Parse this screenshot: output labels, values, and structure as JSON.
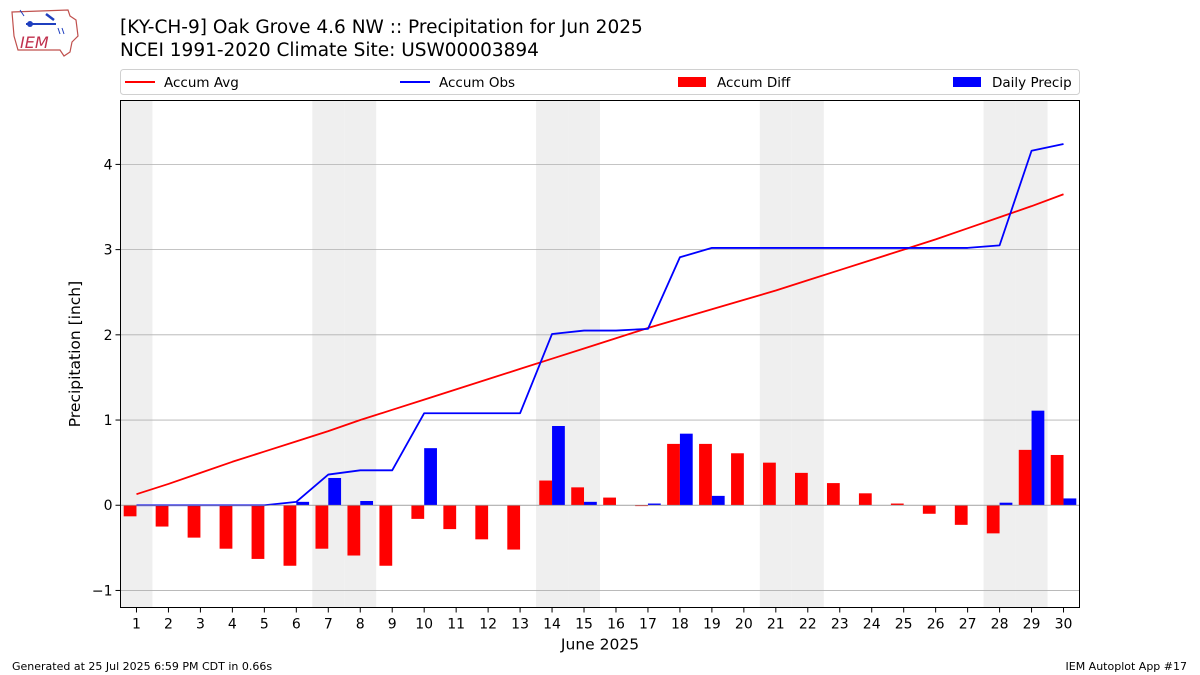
{
  "header": {
    "title_line1": "[KY-CH-9] Oak Grove 4.6 NW :: Precipitation for Jun 2025",
    "title_line2": "NCEI 1991-2020 Climate Site: USW00003894"
  },
  "logo": {
    "text": "IEM"
  },
  "footer": {
    "left": "Generated at 25 Jul 2025 6:59 PM CDT in 0.66s",
    "right": "IEM Autoplot App #17"
  },
  "colors": {
    "avg": "#ff0000",
    "obs": "#0000ff",
    "diff": "#ff0000",
    "daily": "#0000ff",
    "weekend_shade": "#efefef",
    "grid": "#b0b0b0"
  },
  "chart_data": {
    "type": "bar",
    "xlabel": "June 2025",
    "ylabel": "Precipitation [inch]",
    "ylim": [
      -1.2,
      4.75
    ],
    "yticks": [
      -1,
      0,
      1,
      2,
      3,
      4
    ],
    "grid": "horizontal",
    "legend_placement": "top, above plot",
    "x": [
      1,
      2,
      3,
      4,
      5,
      6,
      7,
      8,
      9,
      10,
      11,
      12,
      13,
      14,
      15,
      16,
      17,
      18,
      19,
      20,
      21,
      22,
      23,
      24,
      25,
      26,
      27,
      28,
      29,
      30
    ],
    "weekend_days": [
      1,
      7,
      8,
      14,
      15,
      21,
      22,
      28,
      29
    ],
    "series": [
      {
        "name": "Accum Avg",
        "kind": "line",
        "values": [
          0.13,
          0.25,
          0.38,
          0.51,
          0.63,
          0.75,
          0.87,
          1.0,
          1.12,
          1.24,
          1.36,
          1.48,
          1.6,
          1.72,
          1.84,
          1.96,
          2.08,
          2.19,
          2.3,
          2.41,
          2.52,
          2.64,
          2.76,
          2.88,
          3.0,
          3.12,
          3.25,
          3.38,
          3.51,
          3.65
        ]
      },
      {
        "name": "Accum Obs",
        "kind": "line",
        "values": [
          0.0,
          0.0,
          0.0,
          0.0,
          0.0,
          0.04,
          0.36,
          0.41,
          0.41,
          1.08,
          1.08,
          1.08,
          1.08,
          2.01,
          2.05,
          2.05,
          2.07,
          2.91,
          3.02,
          3.02,
          3.02,
          3.02,
          3.02,
          3.02,
          3.02,
          3.02,
          3.02,
          3.05,
          4.16,
          4.24
        ]
      },
      {
        "name": "Accum Diff",
        "kind": "bar",
        "values": [
          -0.13,
          -0.25,
          -0.38,
          -0.51,
          -0.63,
          -0.71,
          -0.51,
          -0.59,
          -0.71,
          -0.16,
          -0.28,
          -0.4,
          -0.52,
          0.29,
          0.21,
          0.09,
          -0.01,
          0.72,
          0.72,
          0.61,
          0.5,
          0.38,
          0.26,
          0.14,
          0.02,
          -0.1,
          -0.23,
          -0.33,
          0.65,
          0.59
        ]
      },
      {
        "name": "Daily Precip",
        "kind": "bar",
        "values": [
          0,
          0,
          0,
          0,
          0,
          0.04,
          0.32,
          0.05,
          0,
          0.67,
          0,
          0,
          0,
          0.93,
          0.04,
          0,
          0.02,
          0.84,
          0.11,
          0,
          0,
          0,
          0,
          0,
          0,
          0,
          0,
          0.03,
          1.11,
          0.08
        ]
      }
    ]
  }
}
